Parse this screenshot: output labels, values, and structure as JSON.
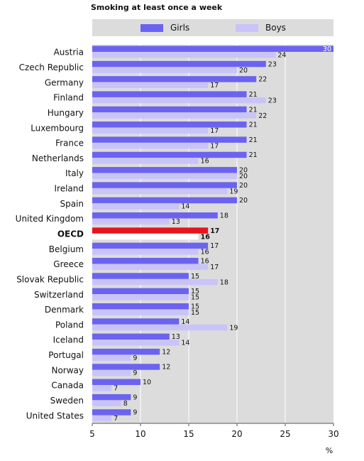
{
  "chart_data": {
    "type": "bar",
    "orientation": "horizontal",
    "title": "Smoking at least once a week",
    "xlabel": "%",
    "xlim": [
      5,
      30
    ],
    "xticks": [
      5,
      10,
      15,
      20,
      25,
      30
    ],
    "grid": true,
    "legend_position": "top",
    "highlight_category": "OECD",
    "categories": [
      "Austria",
      "Czech Republic",
      "Germany",
      "Finland",
      "Hungary",
      "Luxembourg",
      "France",
      "Netherlands",
      "Italy",
      "Ireland",
      "Spain",
      "United Kingdom",
      "OECD",
      "Belgium",
      "Greece",
      "Slovak Republic",
      "Switzerland",
      "Denmark",
      "Poland",
      "Iceland",
      "Portugal",
      "Norway",
      "Canada",
      "Sweden",
      "United States"
    ],
    "series": [
      {
        "name": "Girls",
        "color": "#6b63f0",
        "values": [
          30,
          23,
          22,
          21,
          21,
          21,
          21,
          21,
          20,
          20,
          20,
          18,
          17,
          17,
          16,
          15,
          15,
          15,
          14,
          13,
          12,
          12,
          10,
          9,
          9
        ]
      },
      {
        "name": "Boys",
        "color": "#c9c4f8",
        "values": [
          24,
          20,
          17,
          23,
          22,
          17,
          17,
          16,
          20,
          19,
          14,
          13,
          16,
          16,
          17,
          18,
          15,
          15,
          19,
          14,
          9,
          9,
          7,
          8,
          7
        ]
      }
    ],
    "highlight_colors": {
      "girls": "#e8141c",
      "boys": "#ffffff"
    }
  }
}
